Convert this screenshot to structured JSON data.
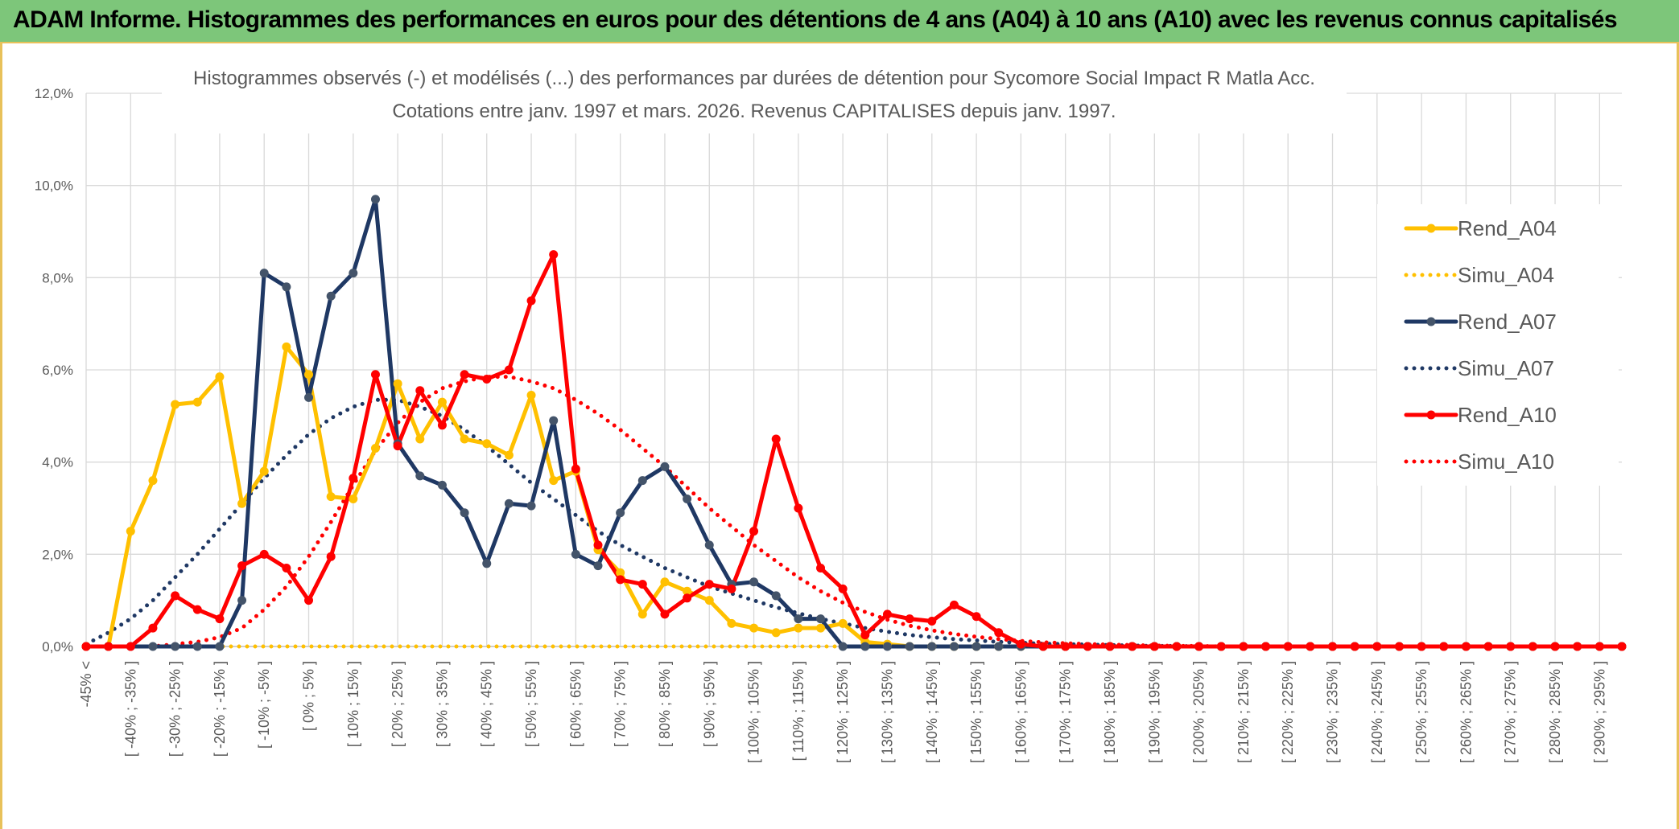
{
  "banner": {
    "title": "ADAM Informe. Histogrammes des performances en euros pour des détentions de 4 ans (A04) à 10 ans (A10) avec les revenus connus capitalisés"
  },
  "colors": {
    "yellow": "#FFC000",
    "navy": "#1F3864",
    "red": "#FF0000",
    "grid": "#D9D9D9",
    "axis": "#595959"
  },
  "chart_data": {
    "type": "line",
    "title": "Histogrammes observés (-) et modélisés (...) des performances par durées de détention pour Sycomore Social Impact R Matla Acc.",
    "subtitle": "Cotations entre janv. 1997 et mars. 2026. Revenus CAPITALISES depuis janv. 1997.",
    "xlabel": "",
    "ylabel": "",
    "ylim": [
      0,
      12
    ],
    "ytick_labels": [
      "0,0%",
      "2,0%",
      "4,0%",
      "6,0%",
      "8,0%",
      "10,0%",
      "12,0%"
    ],
    "x_tick_labels": [
      "-45% <",
      "[ -40% ; -35% ]",
      "[ -30% ; -25% ]",
      "[ -20% ; -15% ]",
      "[ -10% ; -5% ]",
      "[ 0% ; 5% ]",
      "[ 10% ; 15% ]",
      "[ 20% ; 25% ]",
      "[ 30% ; 35% ]",
      "[ 40% ; 45% ]",
      "[ 50% ; 55% ]",
      "[ 60% ; 65% ]",
      "[ 70% ; 75% ]",
      "[ 80% ; 85% ]",
      "[ 90% ; 95% ]",
      "[ 100% ; 105% ]",
      "[ 110% ; 115% ]",
      "[ 120% ; 125% ]",
      "[ 130% ; 135% ]",
      "[ 140% ; 145% ]",
      "[ 150% ; 155% ]",
      "[ 160% ; 165% ]",
      "[ 170% ; 175% ]",
      "[ 180% ; 185% ]",
      "[ 190% ; 195% ]",
      "[ 200% ; 205% ]",
      "[ 210% ; 215% ]",
      "[ 220% ; 225% ]",
      "[ 230% ; 235% ]",
      "[ 240% ; 245% ]",
      "[ 250% ; 255% ]",
      "[ 260% ; 265% ]",
      "[ 270% ; 275% ]",
      "[ 280% ; 285% ]",
      "[ 290% ; 295% ]"
    ],
    "legend_position": "right",
    "series": [
      {
        "name": "Rend_A04",
        "style": "solid",
        "color": "#FFC000",
        "markers": true,
        "values": [
          0,
          0,
          2.5,
          3.6,
          5.25,
          5.3,
          5.85,
          3.1,
          3.8,
          6.5,
          5.9,
          3.25,
          3.2,
          4.3,
          5.7,
          4.5,
          5.3,
          4.5,
          4.4,
          4.15,
          5.45,
          3.6,
          3.8,
          2.1,
          1.6,
          0.7,
          1.4,
          1.2,
          1.0,
          0.5,
          0.4,
          0.3,
          0.4,
          0.4,
          0.5,
          0.1,
          0.05,
          0,
          0,
          0,
          0,
          0,
          0,
          0,
          0,
          0,
          0,
          0,
          0,
          0,
          0,
          0,
          0,
          0,
          0,
          0,
          0,
          0,
          0,
          0,
          0,
          0,
          0,
          0,
          0,
          0,
          0,
          0,
          0,
          0
        ]
      },
      {
        "name": "Simu_A04",
        "style": "dotted",
        "color": "#FFC000",
        "markers": false,
        "values": [
          0,
          0,
          0,
          0,
          0,
          0,
          0,
          0,
          0,
          0,
          0,
          0,
          0,
          0,
          0,
          0,
          0,
          0,
          0,
          0,
          0,
          0,
          0,
          0,
          0,
          0,
          0,
          0,
          0,
          0,
          0,
          0,
          0,
          0,
          0,
          0,
          0,
          0,
          0,
          0,
          0,
          0,
          0,
          0,
          0,
          0,
          0,
          0,
          0,
          0,
          0,
          0,
          0,
          0,
          0,
          0,
          0,
          0,
          0,
          0,
          0,
          0,
          0,
          0,
          0,
          0,
          0,
          0,
          0,
          0
        ]
      },
      {
        "name": "Rend_A07",
        "style": "solid",
        "color": "#1F3864",
        "markers": true,
        "values": [
          0,
          0,
          0,
          0,
          0,
          0,
          0,
          1.0,
          8.1,
          7.8,
          5.4,
          7.6,
          8.1,
          9.7,
          4.4,
          3.7,
          3.5,
          2.9,
          1.8,
          3.1,
          3.05,
          4.9,
          2.0,
          1.75,
          2.9,
          3.6,
          3.9,
          3.2,
          2.2,
          1.35,
          1.4,
          1.1,
          0.6,
          0.6,
          0,
          0,
          0,
          0,
          0,
          0,
          0,
          0,
          0,
          0,
          0,
          0,
          0,
          0,
          0,
          0,
          0,
          0,
          0,
          0,
          0,
          0,
          0,
          0,
          0,
          0,
          0,
          0,
          0,
          0,
          0,
          0,
          0,
          0,
          0,
          0
        ]
      },
      {
        "name": "Simu_A07",
        "style": "dotted",
        "color": "#1F3864",
        "markers": false,
        "values": [
          0.05,
          0.3,
          0.6,
          1.0,
          1.5,
          2.0,
          2.55,
          3.1,
          3.65,
          4.15,
          4.6,
          4.95,
          5.2,
          5.35,
          5.35,
          5.2,
          5.0,
          4.7,
          4.35,
          3.95,
          3.55,
          3.2,
          2.85,
          2.5,
          2.2,
          1.95,
          1.7,
          1.5,
          1.3,
          1.15,
          1.0,
          0.85,
          0.72,
          0.6,
          0.5,
          0.4,
          0.32,
          0.25,
          0.2,
          0.16,
          0.13,
          0.1,
          0.08,
          0.06,
          0.05,
          0.04,
          0.03,
          0.02,
          0.01,
          0.01,
          0,
          0,
          0,
          0,
          0,
          0,
          0,
          0,
          0,
          0,
          0,
          0,
          0,
          0,
          0,
          0,
          0,
          0,
          0,
          0
        ]
      },
      {
        "name": "Rend_A10",
        "style": "solid",
        "color": "#FF0000",
        "markers": true,
        "values": [
          0,
          0,
          0,
          0.4,
          1.1,
          0.8,
          0.6,
          1.75,
          2.0,
          1.7,
          1.0,
          1.95,
          3.65,
          5.9,
          4.35,
          5.55,
          4.8,
          5.9,
          5.8,
          6.0,
          7.5,
          8.5,
          3.85,
          2.2,
          1.45,
          1.35,
          0.7,
          1.05,
          1.35,
          1.25,
          2.5,
          4.5,
          3.0,
          1.7,
          1.25,
          0.25,
          0.7,
          0.6,
          0.55,
          0.9,
          0.65,
          0.3,
          0.05,
          0,
          0,
          0,
          0,
          0,
          0,
          0,
          0,
          0,
          0,
          0,
          0,
          0,
          0,
          0,
          0,
          0,
          0,
          0,
          0,
          0,
          0,
          0,
          0,
          0,
          0,
          0
        ]
      },
      {
        "name": "Simu_A10",
        "style": "dotted",
        "color": "#FF0000",
        "markers": false,
        "values": [
          0,
          0,
          0,
          0,
          0.05,
          0.1,
          0.2,
          0.4,
          0.8,
          1.3,
          1.95,
          2.7,
          3.5,
          4.25,
          4.85,
          5.3,
          5.6,
          5.75,
          5.85,
          5.85,
          5.75,
          5.6,
          5.35,
          5.05,
          4.7,
          4.3,
          3.9,
          3.45,
          3.0,
          2.6,
          2.2,
          1.85,
          1.5,
          1.2,
          0.95,
          0.75,
          0.58,
          0.45,
          0.35,
          0.27,
          0.21,
          0.16,
          0.12,
          0.09,
          0.07,
          0.05,
          0.04,
          0.03,
          0.02,
          0.01,
          0.01,
          0,
          0,
          0,
          0,
          0,
          0,
          0,
          0,
          0,
          0,
          0,
          0,
          0,
          0,
          0,
          0,
          0,
          0,
          0
        ]
      }
    ]
  }
}
